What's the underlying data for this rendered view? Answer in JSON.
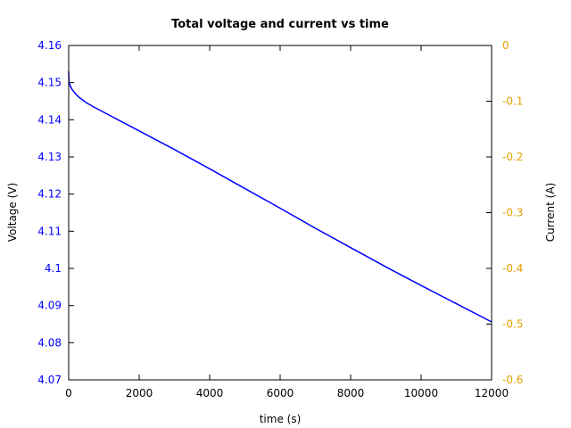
{
  "chart_data": {
    "type": "line",
    "title": "Total voltage and current vs time",
    "xlabel": "time (s)",
    "ylabel": "Voltage (V)",
    "y2label": "Current (A)",
    "xlim": [
      0,
      12000
    ],
    "ylim": [
      4.07,
      4.16
    ],
    "y2lim": [
      -0.6,
      0
    ],
    "x_ticks": [
      0,
      2000,
      4000,
      6000,
      8000,
      10000,
      12000
    ],
    "y_ticks": [
      "4.07",
      "4.08",
      "4.09",
      "4.1",
      "4.11",
      "4.12",
      "4.13",
      "4.14",
      "4.15",
      "4.16"
    ],
    "y2_ticks": [
      "-0.6",
      "-0.5",
      "-0.4",
      "-0.3",
      "-0.2",
      "-0.1",
      "0"
    ],
    "grid": false,
    "colors": {
      "voltage": "#0000ff",
      "current_axis": "#e69f00",
      "frame": "#000000"
    },
    "series": [
      {
        "axis": "left",
        "color": "#0000ff",
        "x": [
          0,
          10,
          30,
          60,
          100,
          150,
          200,
          300,
          400,
          500,
          700,
          1000,
          1500,
          2000,
          3000,
          4000,
          5000,
          6000,
          7000,
          8000,
          9000,
          10000,
          11000,
          12000
        ],
        "y": [
          4.153,
          4.15,
          4.1495,
          4.1488,
          4.1481,
          4.1475,
          4.1469,
          4.146,
          4.1453,
          4.1446,
          4.1435,
          4.142,
          4.1395,
          4.137,
          4.132,
          4.1268,
          4.1215,
          4.1162,
          4.1108,
          4.1056,
          4.1004,
          4.0954,
          4.0905,
          4.0856
        ]
      }
    ]
  }
}
